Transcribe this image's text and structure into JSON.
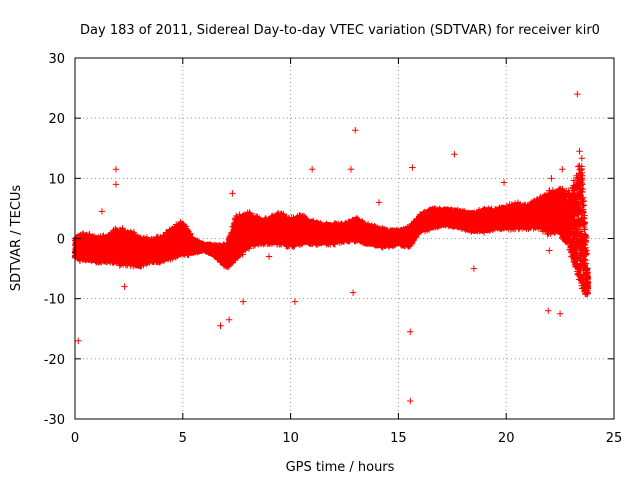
{
  "chart_data": {
    "type": "scatter",
    "title": "Day 183 of 2011, Sidereal Day-to-day VTEC variation (SDTVAR) for receiver kir0",
    "xlabel": "GPS time / hours",
    "ylabel": "SDTVAR / TECUs",
    "xlim": [
      0,
      25
    ],
    "ylim": [
      -30,
      30
    ],
    "x_ticks": [
      0,
      5,
      10,
      15,
      20,
      25
    ],
    "y_ticks": [
      -30,
      -20,
      -10,
      0,
      10,
      20,
      30
    ],
    "x_tick_labels": [
      "0",
      "5",
      "10",
      "15",
      "20",
      "25"
    ],
    "y_tick_labels": [
      "-30",
      "-20",
      "-10",
      "0",
      "10",
      "20",
      "30"
    ],
    "grid": true,
    "marker": "+",
    "color": "#ff0000",
    "series": [
      {
        "name": "SDTVAR",
        "band": [
          [
            0.0,
            -3.5,
            0.5
          ],
          [
            0.5,
            -4.0,
            1.0
          ],
          [
            1.0,
            -4.0,
            0.5
          ],
          [
            1.5,
            -4.0,
            0.5
          ],
          [
            2.0,
            -4.5,
            2.0
          ],
          [
            2.5,
            -4.5,
            1.5
          ],
          [
            3.0,
            -5.0,
            0.5
          ],
          [
            3.5,
            -4.0,
            0.0
          ],
          [
            4.0,
            -4.0,
            0.5
          ],
          [
            4.5,
            -3.5,
            2.0
          ],
          [
            5.0,
            -3.0,
            3.0
          ],
          [
            5.5,
            -2.5,
            0.0
          ],
          [
            6.0,
            -2.0,
            -1.0
          ],
          [
            6.5,
            -3.0,
            -1.0
          ],
          [
            7.0,
            -5.0,
            -1.0
          ],
          [
            7.5,
            -4.0,
            4.0
          ],
          [
            8.0,
            -2.0,
            4.5
          ],
          [
            8.5,
            -1.0,
            3.5
          ],
          [
            9.0,
            -1.0,
            3.5
          ],
          [
            9.5,
            -1.0,
            4.5
          ],
          [
            10.0,
            -1.5,
            3.5
          ],
          [
            10.5,
            -1.0,
            4.0
          ],
          [
            11.0,
            -1.0,
            3.0
          ],
          [
            11.5,
            -1.0,
            2.5
          ],
          [
            12.0,
            -1.0,
            2.5
          ],
          [
            12.5,
            -0.5,
            2.5
          ],
          [
            13.0,
            -0.5,
            3.5
          ],
          [
            13.5,
            -1.0,
            2.5
          ],
          [
            14.0,
            -1.5,
            2.0
          ],
          [
            14.5,
            -1.5,
            1.5
          ],
          [
            15.0,
            -1.0,
            1.5
          ],
          [
            15.5,
            -1.5,
            2.0
          ],
          [
            16.0,
            1.0,
            4.0
          ],
          [
            16.5,
            1.5,
            5.0
          ],
          [
            17.0,
            2.0,
            5.0
          ],
          [
            17.5,
            2.0,
            5.0
          ],
          [
            18.0,
            1.5,
            4.5
          ],
          [
            18.5,
            1.0,
            4.5
          ],
          [
            19.0,
            1.0,
            5.0
          ],
          [
            19.5,
            1.5,
            5.0
          ],
          [
            20.0,
            1.5,
            5.5
          ],
          [
            20.5,
            1.5,
            6.0
          ],
          [
            21.0,
            1.5,
            5.5
          ],
          [
            21.5,
            1.5,
            7.0
          ],
          [
            22.0,
            0.5,
            8.0
          ],
          [
            22.5,
            0.5,
            9.0
          ],
          [
            23.0,
            -3.0,
            8.0
          ],
          [
            23.5,
            -10.0,
            14.0
          ],
          [
            23.8,
            -10.0,
            -6.0
          ]
        ],
        "outliers": [
          [
            0.15,
            -17.0
          ],
          [
            1.9,
            11.5
          ],
          [
            1.9,
            9.0
          ],
          [
            2.3,
            -8.0
          ],
          [
            1.25,
            4.5
          ],
          [
            6.75,
            -14.5
          ],
          [
            7.15,
            -13.5
          ],
          [
            7.3,
            7.5
          ],
          [
            7.8,
            -10.5
          ],
          [
            10.2,
            -10.5
          ],
          [
            11.0,
            11.5
          ],
          [
            13.0,
            18.0
          ],
          [
            12.8,
            11.5
          ],
          [
            12.9,
            -9.0
          ],
          [
            14.1,
            6.0
          ],
          [
            15.55,
            -27.0
          ],
          [
            15.55,
            -15.5
          ],
          [
            15.65,
            11.8
          ],
          [
            17.6,
            14.0
          ],
          [
            18.5,
            -5.0
          ],
          [
            19.9,
            9.3
          ],
          [
            21.95,
            -12.0
          ],
          [
            22.0,
            -2.0
          ],
          [
            22.5,
            -12.5
          ],
          [
            22.6,
            11.5
          ],
          [
            23.3,
            24.0
          ],
          [
            23.4,
            14.5
          ],
          [
            22.1,
            10.0
          ],
          [
            9.0,
            -3.0
          ],
          [
            8.8,
            -0.5
          ]
        ]
      }
    ]
  }
}
